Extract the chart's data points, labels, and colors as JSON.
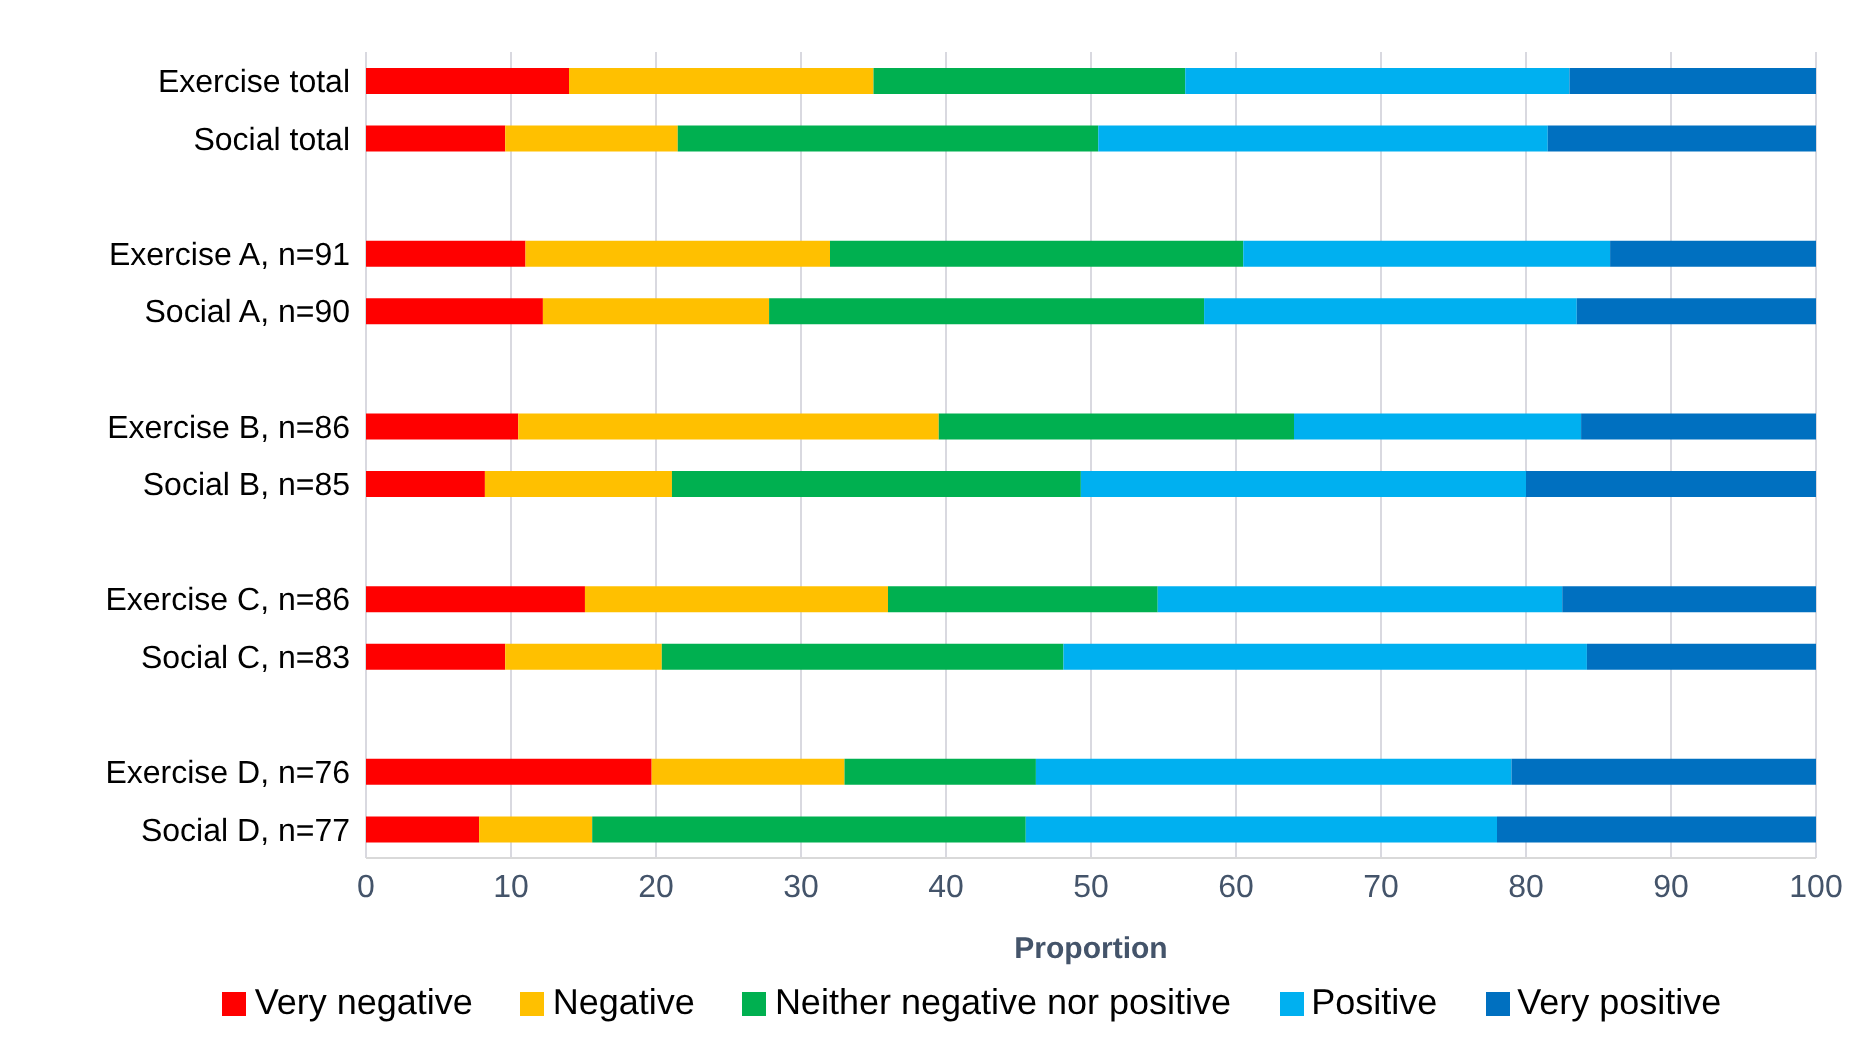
{
  "chart_data": {
    "type": "bar",
    "orientation": "horizontal",
    "stacked": true,
    "xlabel": "Proportion",
    "categories": [
      "Exercise total",
      "Social total",
      null,
      "Exercise A, n=91",
      "Social A, n=90",
      null,
      "Exercise B, n=86",
      "Social B, n=85",
      null,
      "Exercise C, n=86",
      "Social C, n=83",
      null,
      "Exercise D, n=76",
      "Social D, n=77"
    ],
    "series": [
      {
        "name": "Very negative",
        "color": "#ff0000",
        "values": [
          14,
          9.6,
          null,
          11,
          12.2,
          null,
          10.5,
          8.2,
          null,
          15.1,
          9.6,
          null,
          19.7,
          7.8
        ]
      },
      {
        "name": "Negative",
        "color": "#ffc000",
        "values": [
          21,
          11.9,
          null,
          21,
          15.6,
          null,
          29,
          12.9,
          null,
          20.9,
          10.8,
          null,
          13.3,
          7.8
        ]
      },
      {
        "name": "Neither negative nor positive",
        "color": "#00b050",
        "values": [
          21.5,
          29,
          null,
          28.5,
          30,
          null,
          24.5,
          28.2,
          null,
          18.6,
          27.7,
          null,
          13.2,
          29.9
        ]
      },
      {
        "name": "Positive",
        "color": "#00b0f0",
        "values": [
          26.5,
          31,
          null,
          25.3,
          25.7,
          null,
          19.8,
          30.7,
          null,
          27.9,
          36.1,
          null,
          32.8,
          32.5
        ]
      },
      {
        "name": "Very positive",
        "color": "#0070c0",
        "values": [
          17,
          18.5,
          null,
          14.2,
          16.5,
          null,
          16.2,
          20,
          null,
          17.5,
          15.8,
          null,
          21,
          22
        ]
      }
    ],
    "xlim": [
      0,
      100
    ],
    "xticks": [
      0,
      10,
      20,
      30,
      40,
      50,
      60,
      70,
      80,
      90,
      100
    ],
    "grid": "x",
    "legend": "bottom"
  }
}
